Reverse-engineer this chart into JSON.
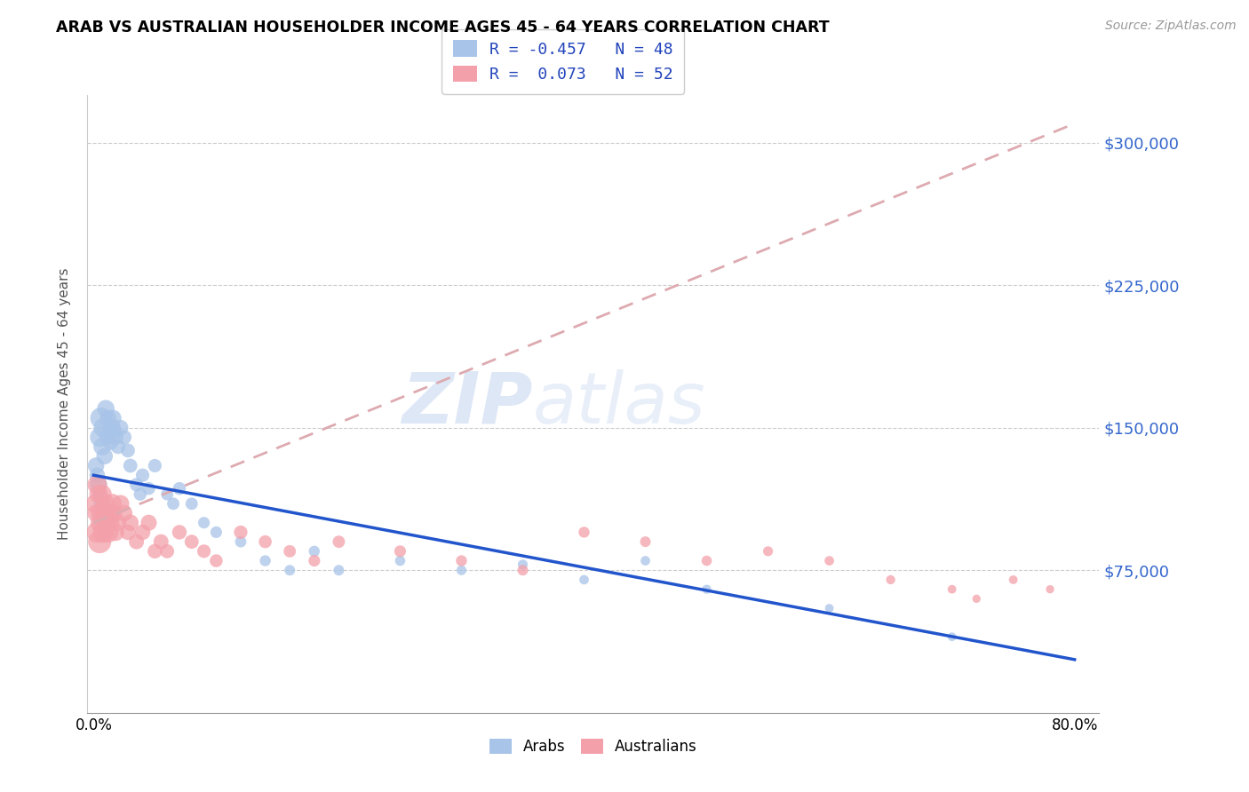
{
  "title": "ARAB VS AUSTRALIAN HOUSEHOLDER INCOME AGES 45 - 64 YEARS CORRELATION CHART",
  "source": "Source: ZipAtlas.com",
  "ylabel": "Householder Income Ages 45 - 64 years",
  "xlabel_ticks": [
    "0.0%",
    "",
    "",
    "",
    "",
    "",
    "",
    "",
    "80.0%"
  ],
  "ytick_labels": [
    "$75,000",
    "$150,000",
    "$225,000",
    "$300,000"
  ],
  "ytick_values": [
    75000,
    150000,
    225000,
    300000
  ],
  "ylim": [
    0,
    325000
  ],
  "xlim": [
    -0.005,
    0.82
  ],
  "watermark_zip": "ZIP",
  "watermark_atlas": "atlas",
  "legend_arab_r": "-0.457",
  "legend_arab_n": "48",
  "legend_aus_r": "0.073",
  "legend_aus_n": "52",
  "arab_color": "#a8c4e8",
  "aus_color": "#f4a0aa",
  "trend_arab_color": "#2255cc",
  "trend_aus_color": "#ddaab0",
  "arab_scatter_x": [
    0.002,
    0.003,
    0.004,
    0.005,
    0.005,
    0.006,
    0.007,
    0.007,
    0.008,
    0.009,
    0.01,
    0.011,
    0.012,
    0.013,
    0.014,
    0.015,
    0.016,
    0.017,
    0.018,
    0.02,
    0.022,
    0.025,
    0.028,
    0.03,
    0.035,
    0.038,
    0.04,
    0.045,
    0.05,
    0.06,
    0.065,
    0.07,
    0.08,
    0.09,
    0.1,
    0.12,
    0.14,
    0.16,
    0.18,
    0.2,
    0.25,
    0.3,
    0.35,
    0.4,
    0.45,
    0.5,
    0.6,
    0.7
  ],
  "arab_scatter_y": [
    130000,
    125000,
    120000,
    145000,
    115000,
    155000,
    140000,
    110000,
    150000,
    135000,
    160000,
    145000,
    155000,
    148000,
    142000,
    150000,
    155000,
    148000,
    145000,
    140000,
    150000,
    145000,
    138000,
    130000,
    120000,
    115000,
    125000,
    118000,
    130000,
    115000,
    110000,
    118000,
    110000,
    100000,
    95000,
    90000,
    80000,
    75000,
    85000,
    75000,
    80000,
    75000,
    78000,
    70000,
    80000,
    65000,
    55000,
    40000
  ],
  "arab_scatter_size": [
    180,
    160,
    200,
    250,
    150,
    300,
    200,
    180,
    250,
    180,
    200,
    160,
    180,
    150,
    140,
    200,
    180,
    150,
    160,
    140,
    160,
    140,
    130,
    130,
    120,
    110,
    120,
    110,
    120,
    100,
    100,
    110,
    100,
    90,
    90,
    85,
    80,
    75,
    80,
    75,
    70,
    65,
    65,
    60,
    60,
    55,
    50,
    50
  ],
  "aus_scatter_x": [
    0.001,
    0.002,
    0.003,
    0.003,
    0.004,
    0.005,
    0.005,
    0.006,
    0.007,
    0.008,
    0.009,
    0.01,
    0.011,
    0.012,
    0.013,
    0.014,
    0.015,
    0.016,
    0.018,
    0.02,
    0.022,
    0.025,
    0.028,
    0.03,
    0.035,
    0.04,
    0.045,
    0.05,
    0.055,
    0.06,
    0.07,
    0.08,
    0.09,
    0.1,
    0.12,
    0.14,
    0.16,
    0.18,
    0.2,
    0.25,
    0.3,
    0.35,
    0.4,
    0.45,
    0.5,
    0.55,
    0.6,
    0.65,
    0.7,
    0.72,
    0.75,
    0.78
  ],
  "aus_scatter_y": [
    110000,
    105000,
    120000,
    95000,
    115000,
    105000,
    90000,
    100000,
    115000,
    95000,
    105000,
    110000,
    100000,
    95000,
    105000,
    100000,
    110000,
    105000,
    95000,
    100000,
    110000,
    105000,
    95000,
    100000,
    90000,
    95000,
    100000,
    85000,
    90000,
    85000,
    95000,
    90000,
    85000,
    80000,
    95000,
    90000,
    85000,
    80000,
    90000,
    85000,
    80000,
    75000,
    95000,
    90000,
    80000,
    85000,
    80000,
    70000,
    65000,
    60000,
    70000,
    65000
  ],
  "aus_scatter_size": [
    220,
    200,
    250,
    300,
    220,
    200,
    350,
    280,
    240,
    300,
    260,
    220,
    200,
    280,
    240,
    200,
    260,
    220,
    200,
    180,
    200,
    180,
    160,
    180,
    150,
    160,
    170,
    140,
    150,
    130,
    140,
    130,
    120,
    110,
    120,
    110,
    100,
    90,
    100,
    90,
    80,
    75,
    80,
    75,
    70,
    65,
    60,
    55,
    50,
    45,
    50,
    45
  ],
  "arab_trend_x0": 0.0,
  "arab_trend_x1": 0.8,
  "arab_trend_y0": 125000,
  "arab_trend_y1": 28000,
  "aus_trend_x0": 0.0,
  "aus_trend_x1": 0.8,
  "aus_trend_y0": 100000,
  "aus_trend_y1": 310000
}
